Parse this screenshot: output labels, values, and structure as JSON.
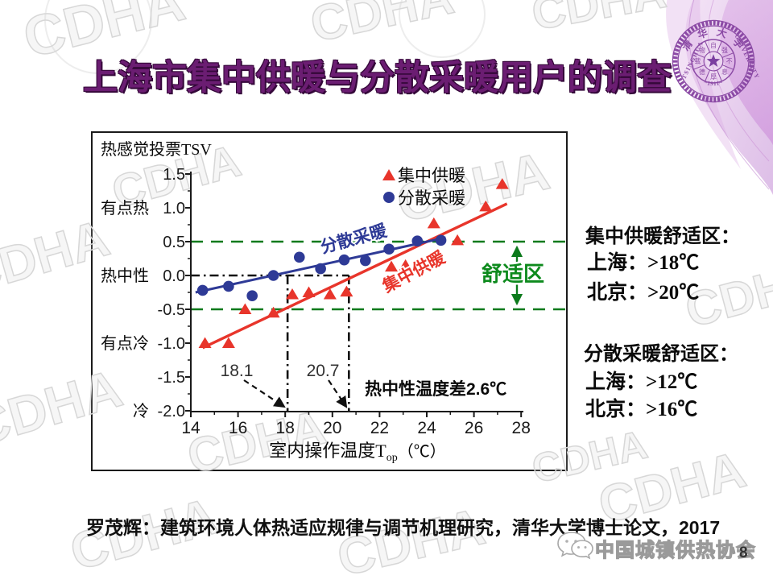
{
  "slide": {
    "title": "上海市集中供暖与分散采暖用户的调查",
    "citation": "罗茂辉：建筑环境人体热适应规律与调节机理研究，清华大学博士论文，2017",
    "page_number": "8",
    "association": "中国城镇供热协会",
    "watermark": "CDHA"
  },
  "seal": {
    "top": "清 华 大 学",
    "left": "TSINGHUA",
    "right": "UNIVERSITY",
    "year": "~1911~",
    "inner": [
      "自",
      "强",
      "不",
      "息",
      "厚",
      "德",
      "载",
      "物"
    ]
  },
  "notes": {
    "centralized_heading": "集中供暖舒适区：",
    "centralized_lines": [
      "上海：>18℃",
      "北京：>20℃"
    ],
    "distributed_heading": "分散采暖舒适区：",
    "distributed_lines": [
      "上海：>12℃",
      "北京：>16℃"
    ]
  },
  "chart_data": {
    "type": "scatter",
    "axis_title": "热感觉投票TSV",
    "xlabel_main": "室内操作温度T",
    "xlabel_sub": "op",
    "xlabel_unit": "（℃）",
    "xlim": [
      14,
      28
    ],
    "ylim": [
      -2.0,
      1.5
    ],
    "x_ticks": [
      14,
      16,
      18,
      20,
      22,
      24,
      26,
      28
    ],
    "y_ticks": [
      1.5,
      1.0,
      0.5,
      0.0,
      -0.5,
      -1.0,
      -1.5,
      -2.0
    ],
    "y_semantic_labels": [
      {
        "label": "有点热",
        "value": 1.0
      },
      {
        "label": "热中性",
        "value": 0.0
      },
      {
        "label": "有点冷",
        "value": -1.0
      },
      {
        "label": "冷",
        "value": -2.0
      }
    ],
    "grid": false,
    "legend_position": "top-center-inside",
    "series": [
      {
        "name": "集中供暖",
        "marker": "triangle",
        "color": "#e8352b",
        "points": [
          [
            14.6,
            -1.0
          ],
          [
            15.6,
            -1.0
          ],
          [
            16.3,
            -0.5
          ],
          [
            17.5,
            -0.55
          ],
          [
            18.3,
            -0.28
          ],
          [
            19.0,
            -0.25
          ],
          [
            19.9,
            -0.28
          ],
          [
            20.6,
            -0.24
          ],
          [
            22.5,
            0.13
          ],
          [
            23.1,
            0.15
          ],
          [
            24.3,
            0.77
          ],
          [
            25.3,
            0.52
          ],
          [
            26.5,
            1.02
          ],
          [
            27.2,
            1.35
          ]
        ],
        "trend": {
          "x1": 14.5,
          "v1": -1.07,
          "x2": 27.4,
          "v2": 1.06
        },
        "inline_label": {
          "t": 23.56,
          "v": -0.02,
          "rotation": -28
        }
      },
      {
        "name": "分散采暖",
        "marker": "circle",
        "color": "#2e3a96",
        "points": [
          [
            14.5,
            -0.22
          ],
          [
            15.6,
            -0.16
          ],
          [
            16.6,
            -0.3
          ],
          [
            17.5,
            0.0
          ],
          [
            18.6,
            0.27
          ],
          [
            19.5,
            0.1
          ],
          [
            20.5,
            0.23
          ],
          [
            21.4,
            0.22
          ],
          [
            22.4,
            0.39
          ],
          [
            23.6,
            0.51
          ],
          [
            24.6,
            0.52
          ]
        ],
        "trend": {
          "x1": 14.2,
          "v1": -0.25,
          "x2": 24.8,
          "v2": 0.56
        },
        "inline_label": {
          "t": 20.96,
          "v": 0.46,
          "rotation": -15
        }
      }
    ],
    "comfort_zone": {
      "label": "舒适区",
      "upper": 0.5,
      "lower": -0.5,
      "color": "#0c7a1c"
    },
    "neutral_temperatures": {
      "distributed": 18.1,
      "centralized": 20.7
    },
    "neutral_labels": [
      "18.1",
      "20.7"
    ],
    "diff_label": "热中性温度差2.6℃"
  }
}
